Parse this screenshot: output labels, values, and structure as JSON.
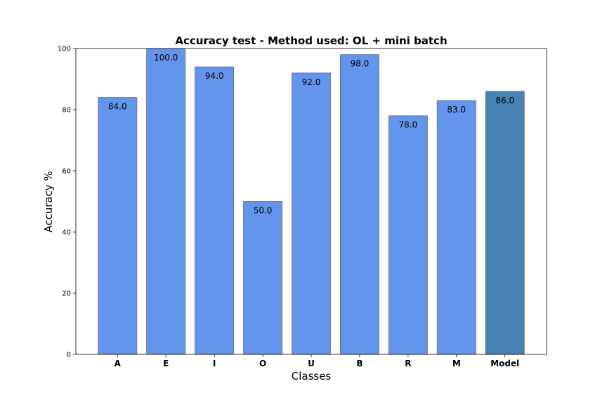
{
  "chart_data": {
    "type": "bar",
    "title": "Accuracy test - Method used: OL + mini batch",
    "xlabel": "Classes",
    "ylabel": "Accuracy %",
    "categories": [
      "A",
      "E",
      "I",
      "O",
      "U",
      "B",
      "R",
      "M",
      "Model"
    ],
    "values": [
      84.0,
      100.0,
      94.0,
      50.0,
      92.0,
      98.0,
      78.0,
      83.0,
      86.0
    ],
    "value_labels": [
      "84.0",
      "100.0",
      "94.0",
      "50.0",
      "92.0",
      "98.0",
      "78.0",
      "83.0",
      "86.0"
    ],
    "ylim": [
      0,
      100
    ],
    "yticks": [
      0,
      20,
      40,
      60,
      80,
      100
    ],
    "grid": false,
    "colors": {
      "class_bar": "#6495ed",
      "model_bar": "#4682b4",
      "bar_edge": "#6b6b6b"
    }
  }
}
